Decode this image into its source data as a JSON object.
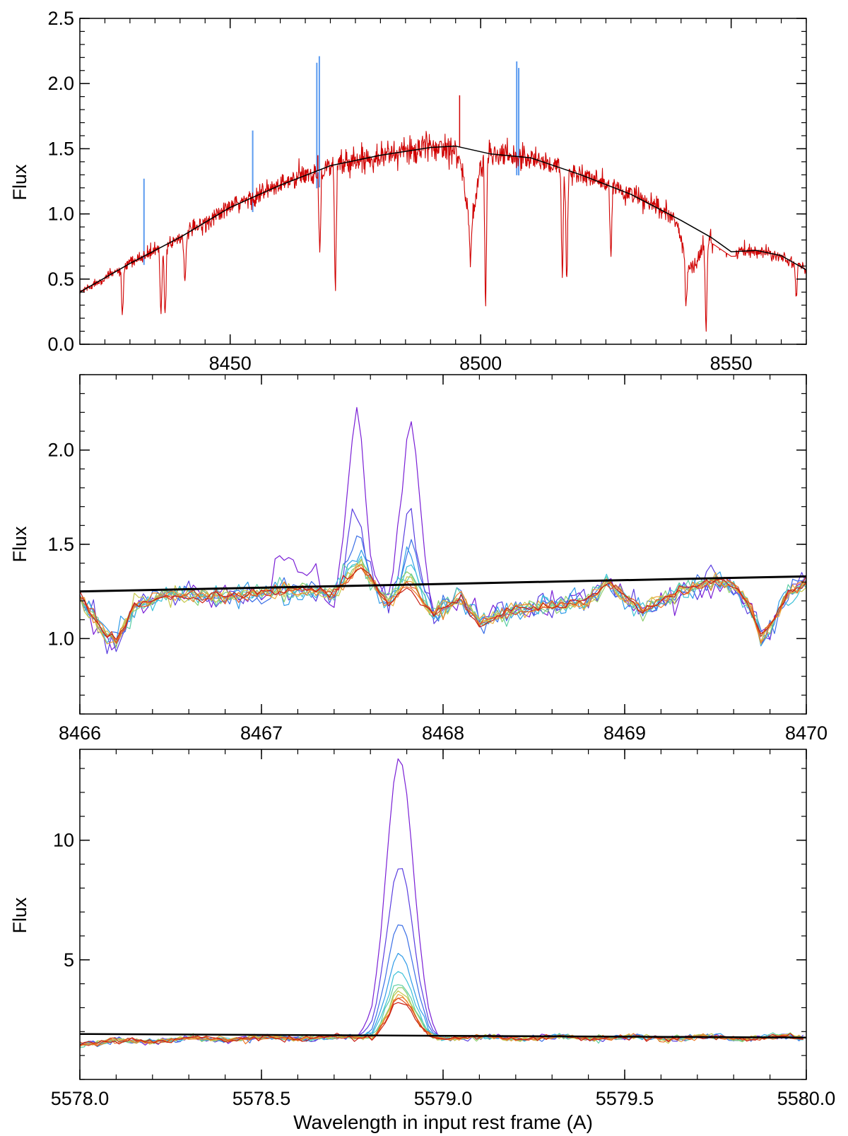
{
  "chart_data": [
    {
      "type": "line",
      "ylabel": "Flux",
      "xlabel": "",
      "xlim": [
        8420,
        8565
      ],
      "ylim": [
        0.0,
        2.5
      ],
      "xticks": [
        8450,
        8500,
        8550
      ],
      "xtick_labels": [
        "8450",
        "8500",
        "8550"
      ],
      "yticks": [
        0.0,
        0.5,
        1.0,
        1.5,
        2.0,
        2.5
      ],
      "ytick_labels": [
        "0.0",
        "0.5",
        "1.0",
        "1.5",
        "2.0",
        "2.5"
      ],
      "series_colors": {
        "observed": "#d00000",
        "sky_residual": "#5b9bf0",
        "continuum": "#000000"
      },
      "continuum": {
        "x": [
          8420,
          8430,
          8440,
          8450,
          8460,
          8470,
          8480,
          8490,
          8495,
          8502,
          8510,
          8520,
          8530,
          8540,
          8546,
          8550,
          8555,
          8560,
          8565
        ],
        "y": [
          0.4,
          0.62,
          0.82,
          1.05,
          1.22,
          1.37,
          1.45,
          1.51,
          1.52,
          1.46,
          1.43,
          1.3,
          1.15,
          0.95,
          0.82,
          0.71,
          0.72,
          0.68,
          0.57
        ]
      },
      "absorption_lines": [
        {
          "x": 8428.5,
          "y": 0.21
        },
        {
          "x": 8436.2,
          "y": 0.23
        },
        {
          "x": 8437.0,
          "y": 0.22
        },
        {
          "x": 8441.0,
          "y": 0.45
        },
        {
          "x": 8467.9,
          "y": 0.72
        },
        {
          "x": 8471.0,
          "y": 0.46
        },
        {
          "x": 8498.0,
          "y": 0.95
        },
        {
          "x": 8501.0,
          "y": 0.35
        },
        {
          "x": 8516.3,
          "y": 0.55
        },
        {
          "x": 8517.2,
          "y": 0.5
        },
        {
          "x": 8526.0,
          "y": 0.7
        },
        {
          "x": 8541.0,
          "y": 0.4
        },
        {
          "x": 8545.0,
          "y": 0.12
        },
        {
          "x": 8563.0,
          "y": 0.4
        }
      ],
      "sky_emission_lines": [
        {
          "x": 8432.8,
          "y": 1.27
        },
        {
          "x": 8454.5,
          "y": 1.64
        },
        {
          "x": 8467.3,
          "y": 2.16
        },
        {
          "x": 8467.8,
          "y": 2.21
        },
        {
          "x": 8507.2,
          "y": 2.17
        },
        {
          "x": 8507.6,
          "y": 2.12
        }
      ],
      "observed_spikes": [
        {
          "x": 8495.8,
          "y": 1.91
        },
        {
          "x": 8467.5,
          "y": 1.45
        }
      ]
    },
    {
      "type": "line",
      "ylabel": "Flux",
      "xlabel": "",
      "xlim": [
        8466,
        8470
      ],
      "ylim": [
        0.6,
        2.4
      ],
      "xticks": [
        8466,
        8467,
        8468,
        8469,
        8470
      ],
      "xtick_labels": [
        "8466",
        "8467",
        "8468",
        "8469",
        "8470"
      ],
      "yticks": [
        1.0,
        1.5,
        2.0
      ],
      "ytick_labels": [
        "1.0",
        "1.5",
        "2.0"
      ],
      "continuum_line": {
        "x": [
          8466,
          8470
        ],
        "y": [
          1.25,
          1.33
        ]
      },
      "sky_peaks": [
        {
          "x": 8467.52,
          "heights": [
            2.15,
            1.68,
            1.54,
            1.46,
            1.42,
            1.4,
            1.38,
            1.37,
            1.36,
            1.35,
            1.34,
            1.33
          ]
        },
        {
          "x": 8467.82,
          "heights": [
            2.2,
            1.64,
            1.5,
            1.42,
            1.38,
            1.35,
            1.32,
            1.3,
            1.29,
            1.28,
            1.27,
            1.26
          ]
        }
      ],
      "profile": {
        "x": [
          8466.0,
          8466.1,
          8466.2,
          8466.3,
          8466.5,
          8466.8,
          8467.0,
          8467.2,
          8467.4,
          8467.55,
          8467.7,
          8467.8,
          8467.95,
          8468.1,
          8468.2,
          8468.4,
          8468.6,
          8468.8,
          8468.9,
          8469.1,
          8469.3,
          8469.5,
          8469.6,
          8469.7,
          8469.75,
          8469.8,
          8469.9,
          8470.0
        ],
        "y": [
          1.22,
          1.07,
          0.98,
          1.17,
          1.23,
          1.22,
          1.25,
          1.26,
          1.24,
          1.38,
          1.18,
          1.28,
          1.13,
          1.22,
          1.08,
          1.16,
          1.17,
          1.2,
          1.3,
          1.15,
          1.25,
          1.3,
          1.28,
          1.15,
          1.0,
          1.06,
          1.24,
          1.3
        ]
      },
      "series_colors": [
        "#7a1fd6",
        "#5a3ee0",
        "#3b6fe6",
        "#2f9be8",
        "#3cc1d8",
        "#5ccfa5",
        "#8ccf6e",
        "#c5c84c",
        "#e8a93a",
        "#ec7b2a",
        "#e04a1e",
        "#c81d12"
      ]
    },
    {
      "type": "line",
      "ylabel": "Flux",
      "xlabel": "Wavelength in input rest frame (A)",
      "xlim": [
        5578.0,
        5580.0
      ],
      "ylim": [
        0,
        13.8
      ],
      "xticks": [
        5578.0,
        5578.5,
        5579.0,
        5579.5,
        5580.0
      ],
      "xtick_labels": [
        "5578.0",
        "5578.5",
        "5579.0",
        "5579.5",
        "5580.0"
      ],
      "yticks": [
        5,
        10
      ],
      "ytick_labels": [
        "5",
        "10"
      ],
      "continuum_line": {
        "x": [
          5578.0,
          5580.0
        ],
        "y": [
          1.9,
          1.75
        ]
      },
      "line_center": 5578.88,
      "peak_heights": [
        13.4,
        8.9,
        6.5,
        5.2,
        4.5,
        4.0,
        3.8,
        3.6,
        3.5,
        3.4,
        3.3,
        3.2
      ],
      "baseline": 1.75,
      "series_colors": [
        "#7a1fd6",
        "#5a3ee0",
        "#3b6fe6",
        "#2f9be8",
        "#3cc1d8",
        "#5ccfa5",
        "#8ccf6e",
        "#c5c84c",
        "#e8a93a",
        "#ec7b2a",
        "#e04a1e",
        "#c81d12"
      ]
    }
  ]
}
